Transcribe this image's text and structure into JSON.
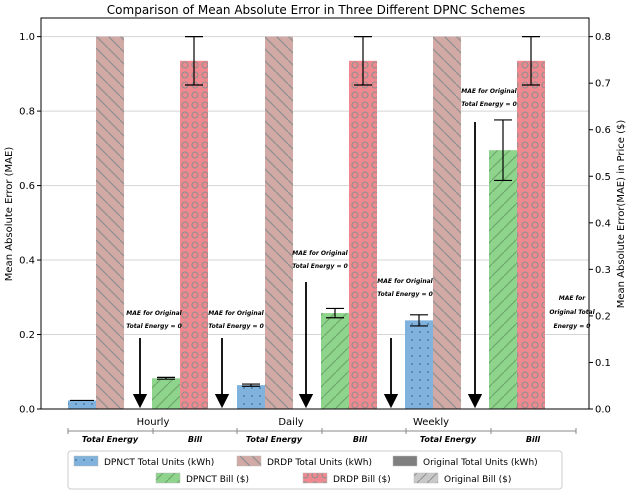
{
  "chart_data": {
    "type": "bar",
    "title": "Comparison of Mean Absolute Error in Three Different DPNC Schemes",
    "ylabel": "Mean Absolute Error (MAE)",
    "y2label": "Mean Absolute Error(MAE) in Price ($)",
    "ylim": [
      0,
      1.05
    ],
    "y2lim": [
      0,
      0.84
    ],
    "yticks": [
      "0.0",
      "0.2",
      "0.4",
      "0.6",
      "0.8",
      "1.0"
    ],
    "y2ticks": [
      "0.0",
      "0.1",
      "0.2",
      "0.3",
      "0.4",
      "0.5",
      "0.6",
      "0.7",
      "0.8"
    ],
    "grid": true,
    "groups": [
      "Hourly",
      "Daily",
      "Weekly"
    ],
    "sub_labels": [
      "Total Energy",
      "Bill"
    ],
    "series": [
      {
        "name": "DPNCT Total Units (kWh)",
        "color": "#7fb2dc",
        "pattern": "dots",
        "axis": "left",
        "values": [
          0.023,
          0.064,
          0.238
        ],
        "errors": [
          0.0,
          0.003,
          0.015
        ]
      },
      {
        "name": "DRDP Total Units  (kWh)",
        "color": "#d1a9a5",
        "pattern": "diagonal",
        "axis": "left",
        "values": [
          1.0,
          1.0,
          1.0
        ],
        "errors": [
          0.0,
          0.0,
          0.0
        ]
      },
      {
        "name": "Original Total Units  (kWh)",
        "color": "#7f7f7f",
        "pattern": "none",
        "axis": "left",
        "values": [
          0,
          0,
          0
        ],
        "errors": [
          0,
          0,
          0
        ]
      },
      {
        "name": "DPNCT Bill ($)",
        "color": "#8fd48c",
        "pattern": "diagonal",
        "axis": "right",
        "values": [
          0.066,
          0.206,
          0.556
        ],
        "errors": [
          0.002,
          0.01,
          0.065
        ]
      },
      {
        "name": "DRDP Bill ($)",
        "color": "#ee8a8f",
        "pattern": "circles",
        "axis": "right",
        "values": [
          0.748,
          0.748,
          0.748
        ],
        "errors": [
          0.052,
          0.052,
          0.052
        ]
      },
      {
        "name": "Original Bill ($)",
        "color": "#b0b0b0",
        "pattern": "diagonal",
        "axis": "right",
        "values": [
          0,
          0,
          0
        ],
        "errors": [
          0,
          0,
          0
        ]
      }
    ],
    "annotations": [
      {
        "lines": [
          "MAE for Original",
          "Total Energy = 0"
        ],
        "group": 0
      },
      {
        "lines": [
          "MAE for Original",
          "Total Energy = 0"
        ],
        "group": 0
      },
      {
        "lines": [
          "MAE for Original",
          "Total Energy = 0"
        ],
        "group": 1
      },
      {
        "lines": [
          "MAE for Original",
          "Total Energy = 0"
        ],
        "group": 1
      },
      {
        "lines": [
          "MAE for Original",
          "Total Energy = 0"
        ],
        "group": 2
      },
      {
        "lines": [
          "MAE for Original",
          "Total Energy = 0"
        ],
        "group": 2
      }
    ],
    "annotations_last_lines": [
      "MAE for",
      "Original Total",
      "Energy = 0"
    ],
    "legend_position": "bottom"
  }
}
